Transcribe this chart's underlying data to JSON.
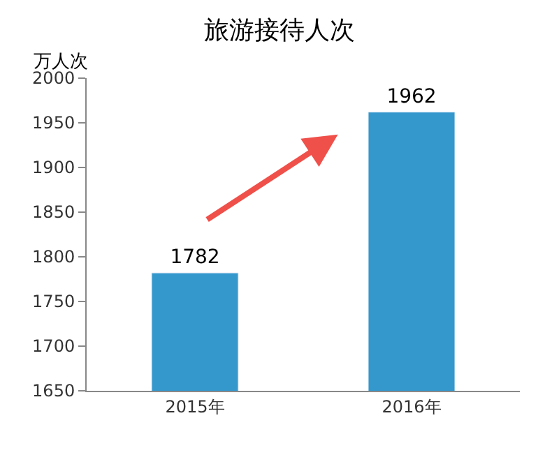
{
  "chart_data": {
    "type": "bar",
    "title": "旅游接待人次",
    "ylabel": "万人次",
    "categories": [
      "2015年",
      "2016年"
    ],
    "values": [
      1782,
      1962
    ],
    "color": "#3498cd",
    "ylim": [
      1650,
      2000
    ],
    "yticks": [
      1650,
      1700,
      1750,
      1800,
      1850,
      1900,
      1950,
      2000
    ],
    "data_labels": true
  }
}
